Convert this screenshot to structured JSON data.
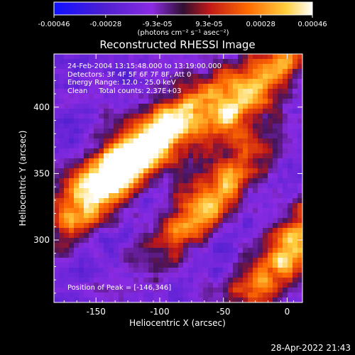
{
  "chart_data": {
    "type": "heatmap",
    "title": "Reconstructed RHESSI Image",
    "xlabel": "Heliocentric X (arcsec)",
    "ylabel": "Heliocentric Y (arcsec)",
    "xlim": [
      -183,
      12
    ],
    "ylim": [
      253,
      440
    ],
    "xticks": [
      -150,
      -100,
      -50,
      0
    ],
    "yticks": [
      300,
      350,
      400
    ],
    "colorbar": {
      "range": [
        -0.00046,
        0.00046
      ],
      "ticks": [
        "-0.00046",
        "-0.00028",
        "-9.3e-05",
        "9.3e-05",
        "0.00028",
        "0.00046"
      ],
      "units_label": "(photons cm⁻² s⁻¹ asec⁻²)",
      "colors": [
        "#1010ff",
        "#8a2be2",
        "#c01818",
        "#ff8800",
        "#ffff80",
        "#ffffff"
      ]
    },
    "annotations": [
      "24-Feb-2004 13:15:48.000 to 13:19:00.000",
      "Detectors: 3F 4F 5F 6F 7F 8F, Att 0",
      "Energy Range: 12.0 - 25.0 keV",
      "Clean     Total counts: 2.37E+03"
    ],
    "peak_label": "Position of Peak = [-146,346]",
    "peak": [
      -146,
      346
    ],
    "source_bands": [
      {
        "center": [
          -140,
          350
        ],
        "peak_value": 0.00046
      },
      {
        "center": [
          -30,
          410
        ],
        "peak_value": 0.00035
      },
      {
        "center": [
          -60,
          330
        ],
        "peak_value": 0.0003
      },
      {
        "center": [
          0,
          290
        ],
        "peak_value": 0.0003
      },
      {
        "center": [
          -90,
          385
        ],
        "peak_value": 0.00022
      }
    ]
  },
  "timestamp": "28-Apr-2022 21:43"
}
